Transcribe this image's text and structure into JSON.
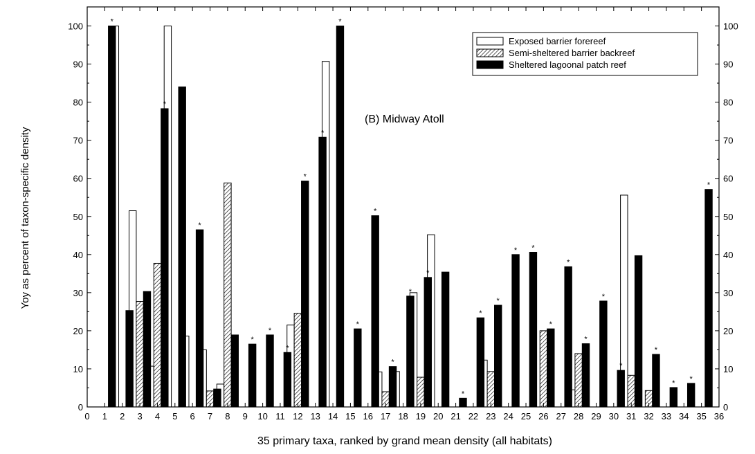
{
  "chart_data": {
    "type": "bar",
    "annotation": "(B)  Midway Atoll",
    "xlabel": "35 primary taxa, ranked by grand mean density (all habitats)",
    "ylabel": "Yoy as percent of taxon-specific density",
    "xlim": [
      0,
      36
    ],
    "ylim": [
      0,
      105
    ],
    "x_ticks": [
      0,
      1,
      2,
      3,
      4,
      5,
      6,
      7,
      8,
      9,
      10,
      11,
      12,
      13,
      14,
      15,
      16,
      17,
      18,
      19,
      20,
      21,
      22,
      23,
      24,
      25,
      26,
      27,
      28,
      29,
      30,
      31,
      32,
      33,
      34,
      35,
      36
    ],
    "y_ticks": [
      0,
      10,
      20,
      30,
      40,
      50,
      60,
      70,
      80,
      90,
      100
    ],
    "right_axis_labels": true,
    "grid": false,
    "legend_position": "top-right",
    "significance_marker": "*",
    "series": [
      {
        "name": "Exposed barrier forereef",
        "style": "open",
        "values": [
          0,
          100,
          51.5,
          10.7,
          100,
          18.6,
          15,
          6,
          0,
          0,
          0,
          21.5,
          0,
          90.7,
          0,
          0,
          9.2,
          9.3,
          30,
          45.2,
          0,
          0,
          12.3,
          0,
          0,
          0,
          0,
          4.5,
          0,
          0,
          55.6,
          0,
          0,
          0,
          0
        ]
      },
      {
        "name": "Semi-sheltered barrier backreef",
        "style": "hatched",
        "values": [
          0,
          0,
          27.7,
          37.7,
          0,
          0,
          4.2,
          58.8,
          0,
          0,
          0,
          24.6,
          0,
          0,
          0,
          0,
          4,
          0,
          7.8,
          0,
          0,
          0,
          9.3,
          0,
          0,
          20,
          0,
          14,
          0,
          0,
          8.3,
          4.3,
          0,
          0,
          0
        ]
      },
      {
        "name": "Sheltered lagoonal patch reef",
        "style": "solid",
        "values": [
          100,
          25.3,
          30.3,
          78.3,
          84,
          46.5,
          4.7,
          18.9,
          16.5,
          18.9,
          14.3,
          59.3,
          70.8,
          100,
          20.5,
          50.2,
          10.6,
          29.1,
          34,
          35.4,
          2.3,
          23.4,
          26.7,
          40,
          40.6,
          20.5,
          36.8,
          16.6,
          27.8,
          9.6,
          39.7,
          13.8,
          5.1,
          6.2,
          57.1
        ]
      }
    ],
    "star_taxa": [
      1,
      4,
      6,
      9,
      10,
      11,
      12,
      13,
      14,
      15,
      16,
      17,
      18,
      19,
      21,
      22,
      23,
      24,
      25,
      26,
      27,
      28,
      29,
      30,
      32,
      33,
      34,
      35
    ]
  }
}
